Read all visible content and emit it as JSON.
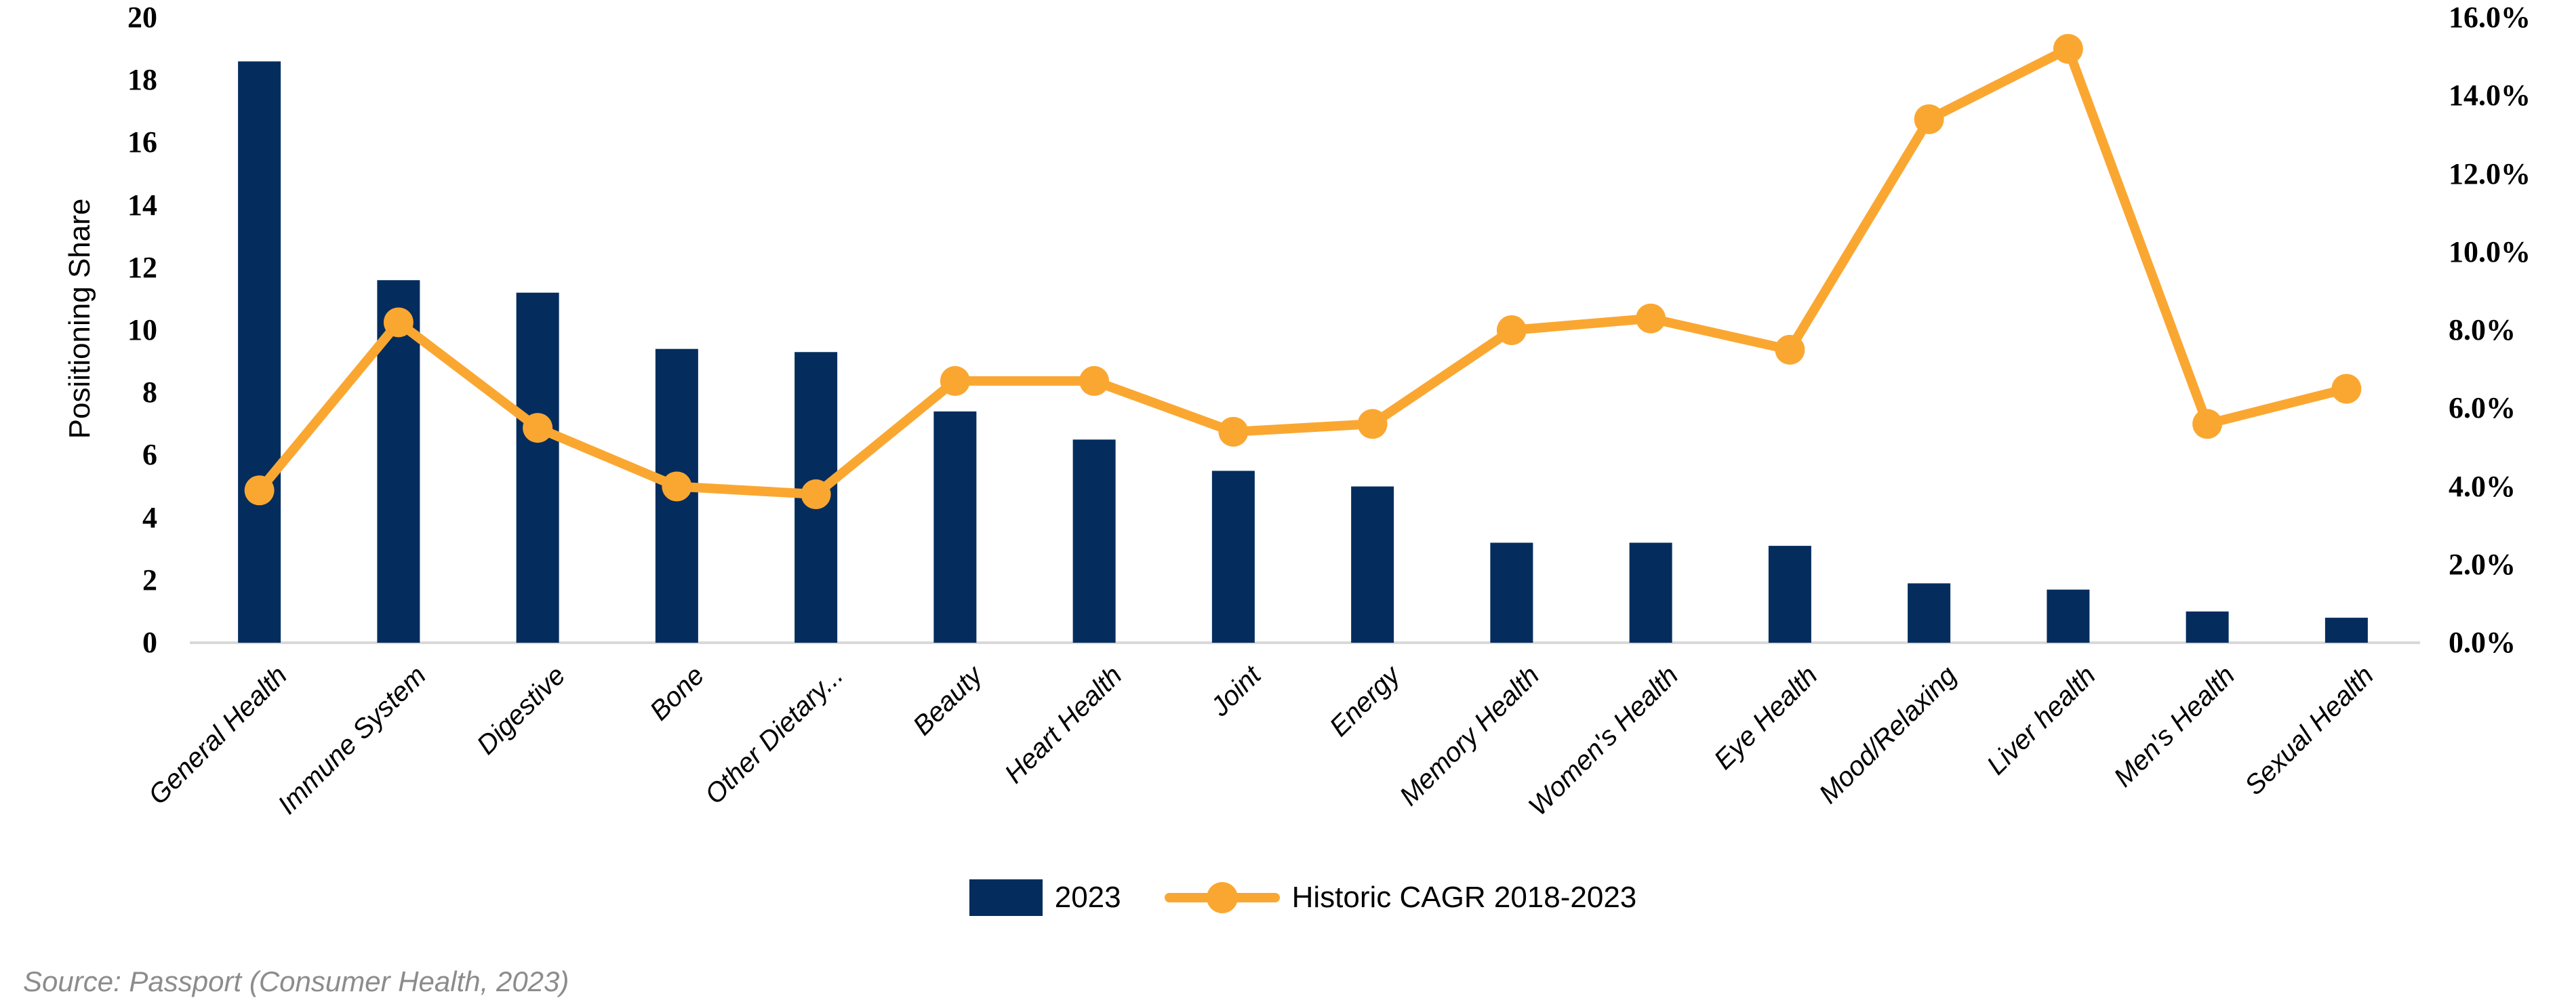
{
  "source": {
    "text": "Source: Passport (Consumer Health, 2023)"
  },
  "colors": {
    "bar_navy": "#042D5E",
    "line_orange": "#FAA732",
    "baseline_gray": "#D9D9D9",
    "source_gray": "#8C8C8C"
  },
  "chart_data": {
    "type": "bar",
    "subtype": "combo-bar-line-dual-axis",
    "categories": [
      "General Health",
      "Immune System",
      "Digestive",
      "Bone",
      "Other Dietary...",
      "Beauty",
      "Heart Health",
      "Joint",
      "Energy",
      "Memory Health",
      "Women's Health",
      "Eye Health",
      "Mood/Relaxing",
      "Liver health",
      "Men's Health",
      "Sexual Health"
    ],
    "series": [
      {
        "name": "2023",
        "type": "bar",
        "axis": "left",
        "color": "#042D5E",
        "values": [
          18.6,
          11.6,
          11.2,
          9.4,
          9.3,
          7.4,
          6.5,
          5.5,
          5.0,
          3.2,
          3.2,
          3.1,
          1.9,
          1.7,
          1.0,
          0.8
        ]
      },
      {
        "name": "Historic CAGR 2018-2023",
        "type": "line",
        "axis": "right",
        "color": "#FAA732",
        "marker": "circle",
        "values_percent": [
          3.9,
          8.2,
          5.5,
          4.0,
          3.8,
          6.7,
          6.7,
          5.4,
          5.6,
          8.0,
          8.3,
          7.5,
          13.4,
          15.2,
          5.6,
          6.5
        ]
      }
    ],
    "left_axis": {
      "label": "Posiitioning Share",
      "min": 0,
      "max": 20,
      "step": 2,
      "tick_labels": [
        "20",
        "18",
        "16",
        "14",
        "12",
        "10",
        "8",
        "6",
        "4",
        "2",
        "0"
      ]
    },
    "right_axis": {
      "label": "",
      "min": 0,
      "max": 16,
      "step": 2,
      "format": "percent",
      "tick_labels": [
        "16.0%",
        "14.0%",
        "12.0%",
        "10.0%",
        "8.0%",
        "6.0%",
        "4.0%",
        "2.0%",
        "0.0%"
      ]
    },
    "grid": false,
    "legend_position": "bottom"
  }
}
